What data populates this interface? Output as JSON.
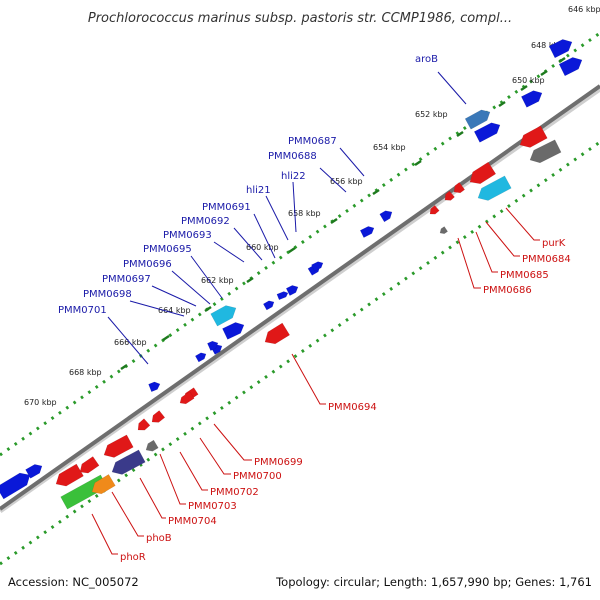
{
  "title": "Prochlorococcus marinus subsp. pastoris str. CCMP1986, compl...",
  "footer": {
    "accession": "Accession: NC_005072",
    "stats": "Topology: circular; Length: 1,657,990 bp; Genes: 1,761"
  },
  "colors": {
    "backbone": "#6e6e6e",
    "dots": "#2a9a2a",
    "forward_cds": "#0a18d8",
    "reverse_cds": "#e01818",
    "other": "#6a6a6a",
    "blue_label": "#1a1aa8",
    "red_label": "#cc1111"
  },
  "ticks": [
    {
      "label": "646 kbp"
    },
    {
      "label": "648 kbp"
    },
    {
      "label": "650 kbp"
    },
    {
      "label": "652 kbp"
    },
    {
      "label": "654 kbp"
    },
    {
      "label": "656 kbp"
    },
    {
      "label": "658 kbp"
    },
    {
      "label": "660 kbp"
    },
    {
      "label": "662 kbp"
    },
    {
      "label": "664 kbp"
    },
    {
      "label": "666 kbp"
    },
    {
      "label": "668 kbp"
    },
    {
      "label": "670 kbp"
    }
  ],
  "forward_labels": [
    {
      "text": "aroB"
    },
    {
      "text": "PMM0687"
    },
    {
      "text": "PMM0688"
    },
    {
      "text": "hli22"
    },
    {
      "text": "hli21"
    },
    {
      "text": "PMM0691"
    },
    {
      "text": "PMM0692"
    },
    {
      "text": "PMM0693"
    },
    {
      "text": "PMM0695"
    },
    {
      "text": "PMM0696"
    },
    {
      "text": "PMM0697"
    },
    {
      "text": "PMM0698"
    },
    {
      "text": "PMM0701"
    }
  ],
  "reverse_labels": [
    {
      "text": "purK"
    },
    {
      "text": "PMM0684"
    },
    {
      "text": "PMM0685"
    },
    {
      "text": "PMM0686"
    },
    {
      "text": "PMM0694"
    },
    {
      "text": "PMM0699"
    },
    {
      "text": "PMM0700"
    },
    {
      "text": "PMM0702"
    },
    {
      "text": "PMM0703"
    },
    {
      "text": "PMM0704"
    },
    {
      "text": "phoB"
    },
    {
      "text": "phoR"
    }
  ]
}
